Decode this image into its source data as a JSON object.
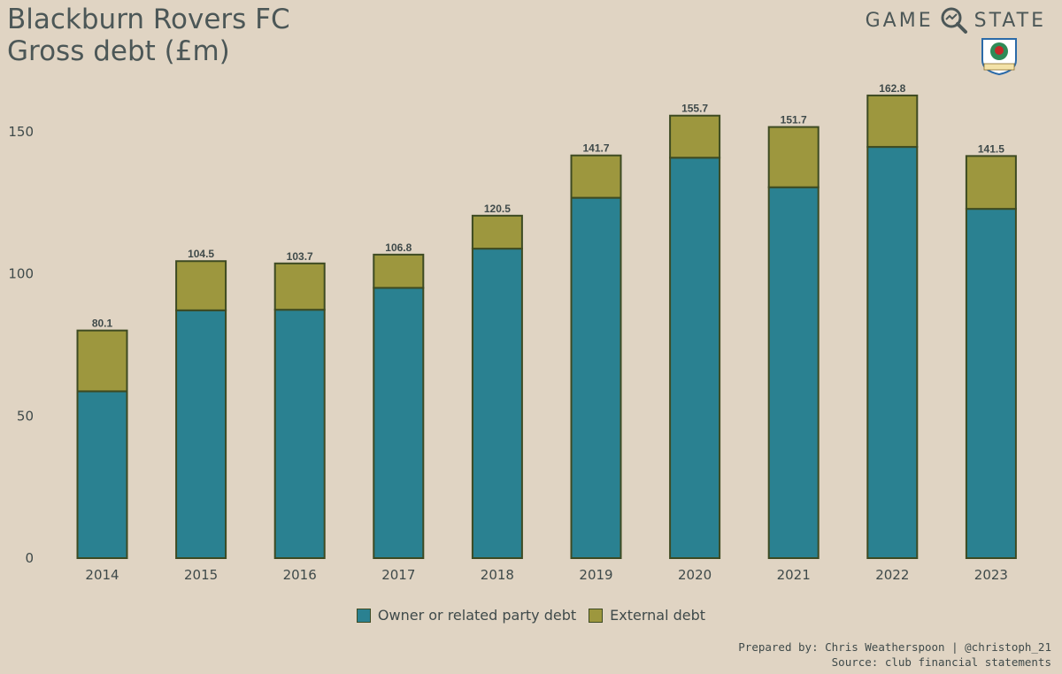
{
  "header": {
    "title_line1": "Blackburn Rovers FC",
    "title_line2": "Gross debt (£m)"
  },
  "brand": {
    "word_left": "GAME",
    "word_right": "STATE",
    "crest_icon": "club-crest-icon"
  },
  "chart_data": {
    "type": "bar",
    "stacked": true,
    "categories": [
      "2014",
      "2015",
      "2016",
      "2017",
      "2018",
      "2019",
      "2020",
      "2021",
      "2022",
      "2023"
    ],
    "series": [
      {
        "name": "Owner or related party debt",
        "color": "#2a8191",
        "values": [
          58.7,
          87.2,
          87.4,
          95.1,
          108.9,
          126.8,
          140.9,
          130.5,
          144.7,
          122.9
        ]
      },
      {
        "name": "External debt",
        "color": "#9d973e",
        "values": [
          21.4,
          17.3,
          16.3,
          11.7,
          11.6,
          14.9,
          14.8,
          21.2,
          18.1,
          18.6
        ]
      }
    ],
    "totals": [
      "80.1",
      "104.5",
      "103.7",
      "106.8",
      "120.5",
      "141.7",
      "155.7",
      "151.7",
      "162.8",
      "141.5"
    ],
    "yticks": [
      0,
      50,
      100,
      150
    ],
    "ylim": [
      0,
      170
    ],
    "grid": false,
    "legend_position": "bottom"
  },
  "footer": {
    "prepared_by": "Prepared by: Chris Weatherspoon | @christoph_21",
    "source": "Source: club financial statements"
  }
}
